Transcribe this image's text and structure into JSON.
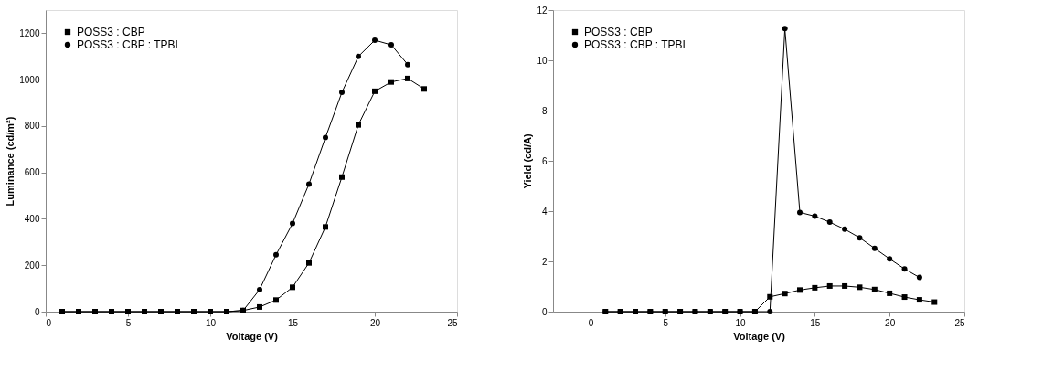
{
  "chart_data": [
    {
      "type": "line",
      "xlabel": "Voltage (V)",
      "ylabel": "Luminance (cd/m²)",
      "xlim": [
        0,
        25
      ],
      "xticks": [
        0,
        5,
        10,
        15,
        20,
        25
      ],
      "ylim": [
        0,
        1300
      ],
      "yticks": [
        0,
        200,
        400,
        600,
        800,
        1000,
        1200
      ],
      "grid": false,
      "legend": "top left",
      "line_style": "solid",
      "series": [
        {
          "name": "POSS3 : CBP",
          "color": "#000000",
          "marker": "square",
          "x": [
            1,
            2,
            3,
            4,
            5,
            6,
            7,
            8,
            9,
            10,
            11,
            12,
            13,
            14,
            15,
            16,
            17,
            18,
            19,
            20,
            21,
            22,
            23
          ],
          "values": [
            0,
            0,
            0,
            0,
            0,
            0,
            0,
            0,
            0,
            0,
            0,
            5,
            20,
            50,
            105,
            210,
            365,
            580,
            805,
            950,
            990,
            1005,
            960
          ]
        },
        {
          "name": "POSS3 : CBP : TPBI",
          "color": "#000000",
          "marker": "circle",
          "x": [
            1,
            2,
            3,
            4,
            5,
            6,
            7,
            8,
            9,
            10,
            11,
            12,
            13,
            14,
            15,
            16,
            17,
            18,
            19,
            20,
            21,
            22
          ],
          "values": [
            0,
            0,
            0,
            0,
            0,
            0,
            0,
            0,
            0,
            0,
            0,
            5,
            95,
            245,
            380,
            550,
            750,
            945,
            1100,
            1170,
            1150,
            1065
          ]
        }
      ]
    },
    {
      "type": "line",
      "xlabel": "Voltage (V)",
      "ylabel": "Yield (cd/A)",
      "xlim": [
        -2.5,
        25
      ],
      "xticks": [
        0,
        5,
        10,
        15,
        20,
        25
      ],
      "ylim": [
        0,
        12
      ],
      "yticks": [
        0,
        2,
        4,
        6,
        8,
        10,
        12
      ],
      "grid": false,
      "legend": "top left",
      "line_style": "solid",
      "series": [
        {
          "name": "POSS3 : CBP",
          "color": "#000000",
          "marker": "square",
          "x": [
            1,
            2,
            3,
            4,
            5,
            6,
            7,
            8,
            9,
            10,
            11,
            12,
            13,
            14,
            15,
            16,
            17,
            18,
            19,
            20,
            21,
            22,
            23
          ],
          "values": [
            0,
            0,
            0,
            0,
            0,
            0,
            0,
            0,
            0,
            0,
            0,
            0.59,
            0.72,
            0.86,
            0.95,
            1.02,
            1.02,
            0.97,
            0.88,
            0.73,
            0.58,
            0.47,
            0.38
          ]
        },
        {
          "name": "POSS3 : CBP : TPBI",
          "color": "#000000",
          "marker": "circle",
          "x": [
            1,
            2,
            3,
            4,
            5,
            6,
            7,
            8,
            9,
            10,
            11,
            12,
            13,
            14,
            15,
            16,
            17,
            18,
            19,
            20,
            21,
            22
          ],
          "values": [
            0,
            0,
            0,
            0,
            0,
            0,
            0,
            0,
            0,
            0,
            0,
            0,
            11.26,
            3.95,
            3.8,
            3.56,
            3.28,
            2.94,
            2.52,
            2.1,
            1.7,
            1.36
          ]
        }
      ]
    }
  ]
}
